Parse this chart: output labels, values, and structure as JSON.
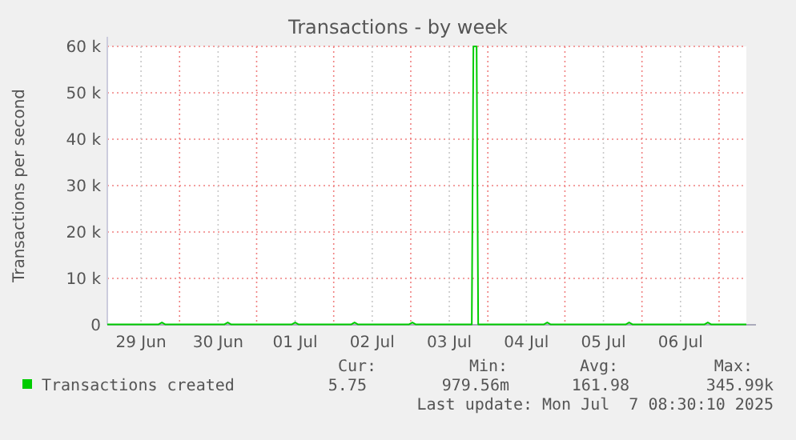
{
  "chart_data": {
    "type": "line",
    "title": "Transactions - by week",
    "ylabel": "Transactions per second",
    "xlim": [
      "2025-06-29T01:30",
      "2025-07-07T08:30"
    ],
    "xticks": [
      {
        "value": "2025-06-29T12:00",
        "label": "29 Jun"
      },
      {
        "value": "2025-06-30T00:00",
        "label": null
      },
      {
        "value": "2025-06-30T12:00",
        "label": "30 Jun"
      },
      {
        "value": "2025-07-01T00:00",
        "label": null
      },
      {
        "value": "2025-07-01T12:00",
        "label": "01 Jul"
      },
      {
        "value": "2025-07-02T00:00",
        "label": null
      },
      {
        "value": "2025-07-02T12:00",
        "label": "02 Jul"
      },
      {
        "value": "2025-07-03T00:00",
        "label": null
      },
      {
        "value": "2025-07-03T12:00",
        "label": "03 Jul"
      },
      {
        "value": "2025-07-04T00:00",
        "label": null
      },
      {
        "value": "2025-07-04T12:00",
        "label": "04 Jul"
      },
      {
        "value": "2025-07-05T00:00",
        "label": null
      },
      {
        "value": "2025-07-05T12:00",
        "label": "05 Jul"
      },
      {
        "value": "2025-07-06T00:00",
        "label": null
      },
      {
        "value": "2025-07-06T12:00",
        "label": "06 Jul"
      },
      {
        "value": "2025-07-07T00:00",
        "label": null
      }
    ],
    "ylim": [
      0,
      60000
    ],
    "yticks": [
      {
        "value": 0,
        "label": "0"
      },
      {
        "value": 10000,
        "label": "10 k"
      },
      {
        "value": 20000,
        "label": "20 k"
      },
      {
        "value": 30000,
        "label": "30 k"
      },
      {
        "value": 40000,
        "label": "40 k"
      },
      {
        "value": 50000,
        "label": "50 k"
      },
      {
        "value": 60000,
        "label": "60 k"
      }
    ],
    "grid": true,
    "legend": "bottom",
    "line_style": "solid",
    "series": [
      {
        "name": "Transactions created",
        "color": "#00cc00",
        "x": [
          "2025-06-29T01:30",
          "2025-06-29T17:30",
          "2025-06-29T18:30",
          "2025-06-29T19:30",
          "2025-06-30T14:00",
          "2025-06-30T15:00",
          "2025-06-30T16:00",
          "2025-07-01T11:00",
          "2025-07-01T12:00",
          "2025-07-01T13:00",
          "2025-07-02T05:30",
          "2025-07-02T06:30",
          "2025-07-02T07:30",
          "2025-07-02T23:30",
          "2025-07-03T00:30",
          "2025-07-03T01:30",
          "2025-07-03T19:00",
          "2025-07-03T19:30",
          "2025-07-03T20:30",
          "2025-07-03T21:00",
          "2025-07-04T17:30",
          "2025-07-04T18:30",
          "2025-07-04T19:30",
          "2025-07-05T19:00",
          "2025-07-05T20:00",
          "2025-07-05T21:00",
          "2025-07-06T19:30",
          "2025-07-06T20:30",
          "2025-07-06T21:30",
          "2025-07-07T08:30"
        ],
        "values": [
          100,
          100,
          500,
          100,
          100,
          500,
          100,
          100,
          500,
          100,
          100,
          500,
          100,
          100,
          500,
          100,
          100,
          60000,
          60000,
          100,
          100,
          500,
          100,
          100,
          500,
          100,
          100,
          500,
          100,
          100
        ]
      }
    ],
    "annotations": [
      "Cur:",
      "Min:",
      "Avg:",
      "Max:",
      "5.75",
      "979.56m",
      "161.98",
      "345.99k",
      "Last update: Mon Jul  7 08:30:10 2025"
    ]
  }
}
